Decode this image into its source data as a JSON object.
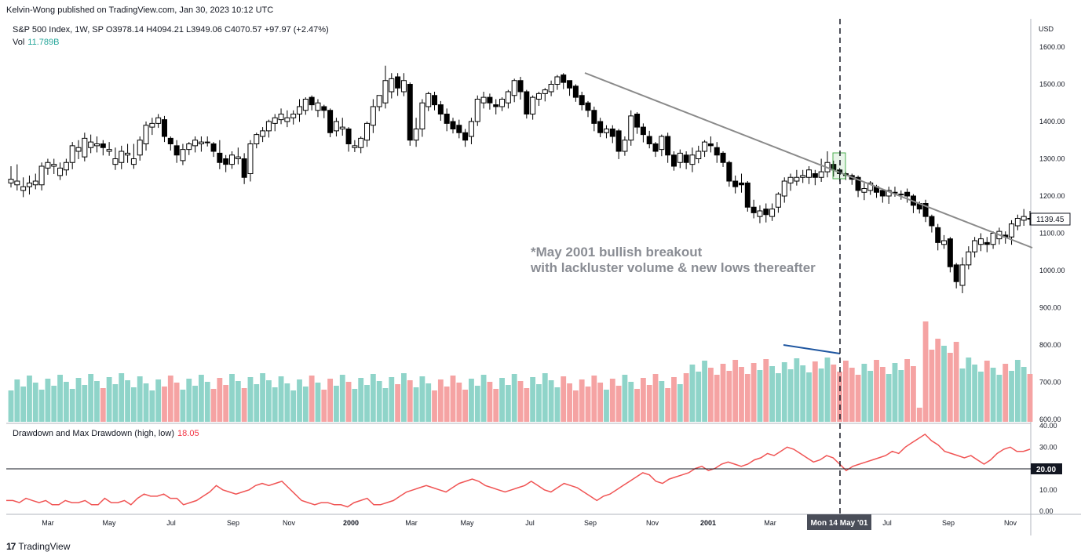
{
  "publisher": "Kelvin-Wong published on TradingView.com, Jan 30, 2023 10:12 UTC",
  "legend": {
    "symbol": "S&P 500 Index, 1W, SP",
    "open": "O3978.14",
    "high": "H4094.21",
    "low": "L3949.06",
    "close": "C4070.57",
    "change": "+97.97 (+2.47%)",
    "vol_label": "Vol",
    "vol_value": "11.789B"
  },
  "drawdown_legend": {
    "label": "Drawdown and Max Drawdown (high, low)",
    "value": "18.05"
  },
  "annotation": {
    "line1": "*May 2001 bullish breakout",
    "line2": "with lackluster volume & new lows thereafter"
  },
  "crosshair_label": "Mon 14 May '01",
  "currency_label": "USD",
  "last_price_label": "1139.45",
  "dd_level_label": "20.00",
  "footer": {
    "brand": "TradingView"
  },
  "colors": {
    "up_volume": "#8fd4c9",
    "down_volume": "#f5a3a3",
    "drawdown_line": "#f05454",
    "trendline": "#8a8a8a",
    "volume_divergence_line": "#1e56a0"
  },
  "chart_data": {
    "type": "candlestick",
    "title": "S&P 500 Index, 1W",
    "price_axis": {
      "ticks": [
        "1600.00",
        "1500.00",
        "1400.00",
        "1300.00",
        "1200.00",
        "1100.00",
        "1000.00",
        "900.00",
        "800.00",
        "700.00",
        "600.00"
      ],
      "range": [
        590,
        1640
      ]
    },
    "drawdown_axis": {
      "ticks": [
        "40.00",
        "30.00",
        "10.00",
        "0.00"
      ],
      "range": [
        0,
        40
      ]
    },
    "time_axis": [
      "Mar",
      "May",
      "Jul",
      "Sep",
      "Nov",
      "2000",
      "Mar",
      "May",
      "Jul",
      "Sep",
      "Nov",
      "2001",
      "Mar",
      "Jul",
      "Sep",
      "Nov"
    ],
    "candles": [
      [
        1245,
        1235,
        1280
      ],
      [
        1240,
        1230,
        1285
      ],
      [
        1225,
        1215,
        1250
      ],
      [
        1235,
        1225,
        1255
      ],
      [
        1240,
        1230,
        1260
      ],
      [
        1280,
        1230,
        1290
      ],
      [
        1290,
        1275,
        1300
      ],
      [
        1285,
        1280,
        1300
      ],
      [
        1275,
        1255,
        1290
      ],
      [
        1290,
        1270,
        1300
      ],
      [
        1335,
        1290,
        1345
      ],
      [
        1330,
        1320,
        1350
      ],
      [
        1355,
        1305,
        1370
      ],
      [
        1345,
        1330,
        1365
      ],
      [
        1340,
        1335,
        1360
      ],
      [
        1330,
        1340,
        1350
      ],
      [
        1325,
        1320,
        1345
      ],
      [
        1300,
        1285,
        1330
      ],
      [
        1320,
        1290,
        1335
      ],
      [
        1315,
        1310,
        1340
      ],
      [
        1300,
        1285,
        1340
      ],
      [
        1350,
        1310,
        1360
      ],
      [
        1390,
        1340,
        1400
      ],
      [
        1395,
        1385,
        1410
      ],
      [
        1410,
        1395,
        1420
      ],
      [
        1360,
        1405,
        1415
      ],
      [
        1340,
        1355,
        1360
      ],
      [
        1310,
        1335,
        1350
      ],
      [
        1325,
        1295,
        1340
      ],
      [
        1340,
        1325,
        1345
      ],
      [
        1350,
        1335,
        1360
      ],
      [
        1345,
        1340,
        1360
      ],
      [
        1345,
        1345,
        1360
      ],
      [
        1320,
        1340,
        1345
      ],
      [
        1290,
        1315,
        1350
      ],
      [
        1285,
        1300,
        1310
      ],
      [
        1310,
        1285,
        1320
      ],
      [
        1305,
        1300,
        1330
      ],
      [
        1250,
        1300,
        1315
      ],
      [
        1340,
        1260,
        1350
      ],
      [
        1365,
        1340,
        1370
      ],
      [
        1375,
        1360,
        1385
      ],
      [
        1400,
        1375,
        1405
      ],
      [
        1410,
        1395,
        1420
      ],
      [
        1420,
        1405,
        1435
      ],
      [
        1410,
        1400,
        1430
      ],
      [
        1420,
        1410,
        1430
      ],
      [
        1440,
        1420,
        1460
      ],
      [
        1460,
        1430,
        1465
      ],
      [
        1445,
        1465,
        1470
      ],
      [
        1450,
        1430,
        1460
      ],
      [
        1430,
        1440,
        1445
      ],
      [
        1370,
        1430,
        1435
      ],
      [
        1400,
        1375,
        1410
      ],
      [
        1385,
        1380,
        1410
      ],
      [
        1340,
        1380,
        1385
      ],
      [
        1335,
        1330,
        1350
      ],
      [
        1355,
        1330,
        1360
      ],
      [
        1395,
        1350,
        1400
      ],
      [
        1440,
        1390,
        1460
      ],
      [
        1470,
        1440,
        1470
      ],
      [
        1510,
        1450,
        1550
      ],
      [
        1515,
        1480,
        1530
      ],
      [
        1490,
        1520,
        1530
      ],
      [
        1510,
        1480,
        1530
      ],
      [
        1350,
        1500,
        1505
      ],
      [
        1380,
        1350,
        1410
      ],
      [
        1450,
        1380,
        1460
      ],
      [
        1475,
        1440,
        1480
      ],
      [
        1445,
        1470,
        1480
      ],
      [
        1420,
        1445,
        1455
      ],
      [
        1395,
        1420,
        1435
      ],
      [
        1380,
        1400,
        1410
      ],
      [
        1370,
        1390,
        1405
      ],
      [
        1350,
        1370,
        1380
      ],
      [
        1400,
        1360,
        1410
      ],
      [
        1460,
        1400,
        1470
      ],
      [
        1465,
        1450,
        1480
      ],
      [
        1450,
        1465,
        1475
      ],
      [
        1440,
        1445,
        1460
      ],
      [
        1460,
        1440,
        1465
      ],
      [
        1480,
        1450,
        1485
      ],
      [
        1510,
        1470,
        1515
      ],
      [
        1480,
        1510,
        1520
      ],
      [
        1420,
        1480,
        1485
      ],
      [
        1465,
        1420,
        1470
      ],
      [
        1475,
        1460,
        1480
      ],
      [
        1485,
        1475,
        1490
      ],
      [
        1500,
        1480,
        1510
      ],
      [
        1520,
        1500,
        1525
      ],
      [
        1505,
        1525,
        1530
      ],
      [
        1490,
        1510,
        1510
      ],
      [
        1465,
        1495,
        1500
      ],
      [
        1445,
        1470,
        1480
      ],
      [
        1430,
        1450,
        1455
      ],
      [
        1395,
        1430,
        1440
      ],
      [
        1370,
        1400,
        1410
      ],
      [
        1380,
        1370,
        1390
      ],
      [
        1360,
        1380,
        1390
      ],
      [
        1320,
        1375,
        1380
      ],
      [
        1350,
        1320,
        1360
      ],
      [
        1415,
        1350,
        1430
      ],
      [
        1385,
        1420,
        1425
      ],
      [
        1365,
        1385,
        1395
      ],
      [
        1340,
        1360,
        1375
      ],
      [
        1320,
        1340,
        1345
      ],
      [
        1360,
        1325,
        1365
      ],
      [
        1310,
        1360,
        1370
      ],
      [
        1280,
        1310,
        1320
      ],
      [
        1315,
        1290,
        1325
      ],
      [
        1290,
        1310,
        1320
      ],
      [
        1310,
        1285,
        1330
      ],
      [
        1320,
        1300,
        1335
      ],
      [
        1345,
        1320,
        1350
      ],
      [
        1335,
        1340,
        1360
      ],
      [
        1310,
        1330,
        1345
      ],
      [
        1290,
        1315,
        1320
      ],
      [
        1240,
        1290,
        1295
      ],
      [
        1225,
        1240,
        1255
      ],
      [
        1230,
        1235,
        1260
      ],
      [
        1170,
        1235,
        1240
      ],
      [
        1155,
        1170,
        1190
      ],
      [
        1160,
        1145,
        1175
      ],
      [
        1150,
        1165,
        1180
      ],
      [
        1165,
        1145,
        1180
      ],
      [
        1205,
        1170,
        1210
      ],
      [
        1240,
        1200,
        1250
      ],
      [
        1250,
        1235,
        1260
      ],
      [
        1250,
        1240,
        1270
      ],
      [
        1255,
        1250,
        1270
      ],
      [
        1270,
        1250,
        1280
      ],
      [
        1250,
        1260,
        1270
      ],
      [
        1265,
        1250,
        1300
      ],
      [
        1290,
        1265,
        1320
      ],
      [
        1270,
        1285,
        1295
      ],
      [
        1260,
        1270,
        1275
      ],
      [
        1255,
        1260,
        1265
      ],
      [
        1245,
        1255,
        1260
      ],
      [
        1215,
        1250,
        1255
      ],
      [
        1220,
        1210,
        1235
      ],
      [
        1235,
        1215,
        1240
      ],
      [
        1210,
        1225,
        1230
      ],
      [
        1200,
        1215,
        1220
      ],
      [
        1215,
        1200,
        1225
      ],
      [
        1210,
        1210,
        1225
      ],
      [
        1205,
        1205,
        1215
      ],
      [
        1200,
        1210,
        1220
      ],
      [
        1175,
        1200,
        1205
      ],
      [
        1165,
        1180,
        1185
      ],
      [
        1145,
        1180,
        1190
      ],
      [
        1120,
        1145,
        1150
      ],
      [
        1075,
        1115,
        1125
      ],
      [
        1080,
        1070,
        1095
      ],
      [
        1010,
        1085,
        1090
      ],
      [
        970,
        1015,
        1020
      ],
      [
        1015,
        960,
        1035
      ],
      [
        1050,
        1015,
        1065
      ],
      [
        1080,
        1050,
        1090
      ],
      [
        1085,
        1070,
        1100
      ],
      [
        1070,
        1075,
        1090
      ],
      [
        1100,
        1070,
        1105
      ],
      [
        1105,
        1085,
        1115
      ],
      [
        1090,
        1095,
        1105
      ],
      [
        1125,
        1090,
        1135
      ],
      [
        1140,
        1120,
        1150
      ],
      [
        1145,
        1135,
        1165
      ],
      [
        1139,
        1140,
        1160
      ]
    ],
    "volume": {
      "ticks": [
        "800.00",
        "700.00",
        "600.00"
      ],
      "note": "relative volume bars, up=teal, down=red"
    },
    "drawdown_series": [
      5,
      5,
      4,
      6,
      5,
      4,
      5,
      3,
      3,
      5,
      4,
      4,
      5,
      3,
      3,
      6,
      4,
      4,
      5,
      3,
      6,
      8,
      7,
      7,
      8,
      6,
      6,
      3,
      4,
      5,
      7,
      9,
      12,
      10,
      9,
      8,
      9,
      10,
      12,
      13,
      12,
      13,
      14,
      11,
      8,
      5,
      4,
      3,
      4,
      4,
      3,
      3,
      2,
      4,
      5,
      6,
      3,
      3,
      4,
      5,
      7,
      9,
      10,
      11,
      12,
      11,
      10,
      9,
      11,
      13,
      14,
      15,
      14,
      12,
      11,
      10,
      9,
      10,
      11,
      12,
      14,
      12,
      10,
      9,
      11,
      13,
      12,
      11,
      9,
      7,
      5,
      7,
      8,
      10,
      12,
      14,
      16,
      18,
      17,
      14,
      13,
      15,
      16,
      17,
      18,
      20,
      21,
      19,
      20,
      22,
      23,
      22,
      21,
      22,
      24,
      25,
      27,
      26,
      28,
      30,
      29,
      27,
      25,
      23,
      24,
      26,
      25,
      22,
      19,
      21,
      22,
      23,
      24,
      25,
      26,
      28,
      27,
      30,
      32,
      34,
      36,
      33,
      31,
      28,
      27,
      26,
      25,
      26,
      24,
      22,
      24,
      27,
      29,
      30,
      28,
      28,
      29
    ]
  }
}
